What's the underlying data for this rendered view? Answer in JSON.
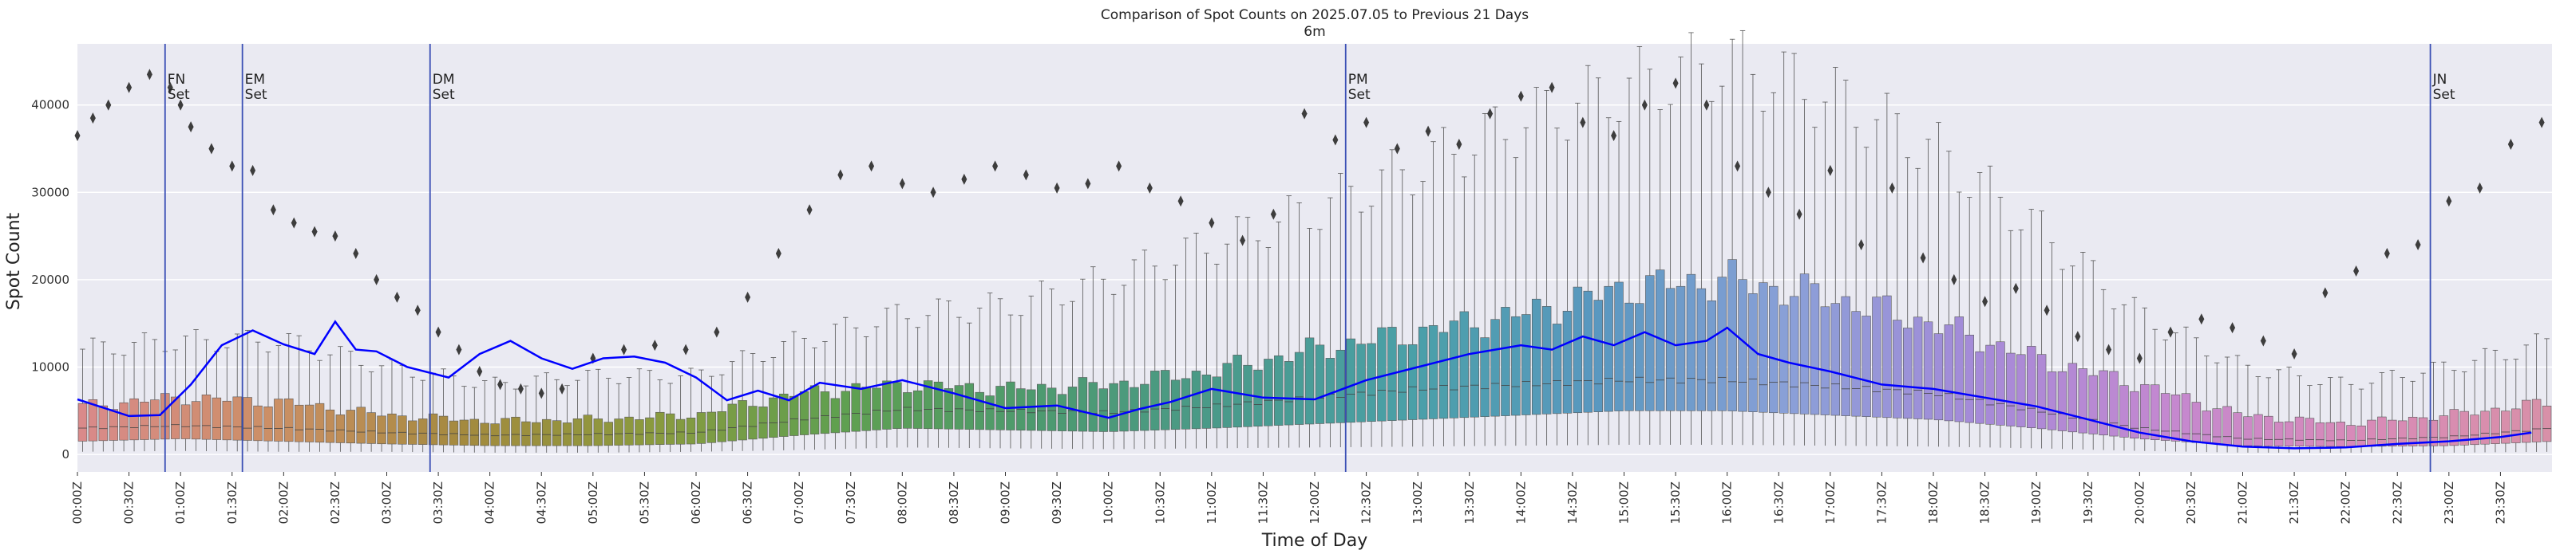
{
  "chart_data": {
    "type": "box",
    "title": "Comparison of Spot Counts on 2025.07.05 to Previous 21 Days",
    "subtitle": "6m",
    "xlabel": "Time of Day",
    "ylabel": "Spot Count",
    "ylim": [
      -2000,
      47000
    ],
    "yticks": [
      0,
      10000,
      20000,
      30000,
      40000
    ],
    "bin_minutes": 6,
    "xtick_labels": [
      "00:00Z",
      "00:30Z",
      "01:00Z",
      "01:30Z",
      "02:00Z",
      "02:30Z",
      "03:00Z",
      "03:30Z",
      "04:00Z",
      "04:30Z",
      "05:00Z",
      "05:30Z",
      "06:00Z",
      "06:30Z",
      "07:00Z",
      "07:30Z",
      "08:00Z",
      "08:30Z",
      "09:00Z",
      "09:30Z",
      "10:00Z",
      "10:30Z",
      "11:00Z",
      "11:30Z",
      "12:00Z",
      "12:30Z",
      "13:00Z",
      "13:30Z",
      "14:00Z",
      "14:30Z",
      "15:00Z",
      "15:30Z",
      "16:00Z",
      "16:30Z",
      "17:00Z",
      "17:30Z",
      "18:00Z",
      "18:30Z",
      "19:00Z",
      "19:30Z",
      "20:00Z",
      "20:30Z",
      "21:00Z",
      "21:30Z",
      "22:00Z",
      "22:30Z",
      "23:00Z",
      "23:30Z"
    ],
    "box_profile": {
      "hours": [
        0,
        1,
        2,
        3,
        4,
        5,
        6,
        7,
        8,
        9,
        10,
        11,
        12,
        13,
        14,
        15,
        16,
        17,
        18,
        19,
        20,
        21,
        22,
        23,
        24
      ],
      "q1": [
        1500,
        1800,
        1500,
        1200,
        1000,
        1000,
        1200,
        2200,
        3000,
        2800,
        2600,
        3000,
        3500,
        4000,
        4500,
        5000,
        5000,
        4500,
        4000,
        3000,
        1800,
        1000,
        900,
        1000,
        1500
      ],
      "median": [
        3000,
        3300,
        3000,
        2500,
        2200,
        2300,
        2500,
        4000,
        5200,
        5000,
        4800,
        5500,
        6500,
        7500,
        8000,
        8500,
        8500,
        7800,
        7000,
        5000,
        3000,
        1800,
        1600,
        2000,
        3000
      ],
      "q3": [
        5500,
        6500,
        6000,
        4500,
        3800,
        4000,
        4500,
        7000,
        8000,
        7500,
        8000,
        9500,
        12000,
        14000,
        16000,
        19000,
        20000,
        18000,
        15000,
        11000,
        8000,
        4500,
        3500,
        4500,
        6000
      ],
      "whisker_high": [
        12000,
        13000,
        13000,
        10000,
        8000,
        9000,
        9000,
        13000,
        16000,
        17000,
        20000,
        24000,
        28000,
        33000,
        38000,
        42000,
        45000,
        41000,
        35000,
        26000,
        16000,
        10000,
        8000,
        10000,
        13000
      ],
      "whisker_low": [
        300,
        400,
        300,
        300,
        200,
        200,
        300,
        500,
        800,
        700,
        600,
        700,
        800,
        900,
        1000,
        1100,
        1100,
        1000,
        900,
        700,
        400,
        200,
        200,
        200,
        300
      ]
    },
    "series": [
      {
        "name": "2025.07.05",
        "hours": [
          0,
          0.5,
          0.8,
          1.1,
          1.4,
          1.7,
          2.0,
          2.3,
          2.5,
          2.7,
          2.9,
          3.2,
          3.6,
          3.9,
          4.2,
          4.5,
          4.8,
          5.1,
          5.4,
          5.7,
          6.0,
          6.3,
          6.6,
          6.9,
          7.2,
          7.6,
          8.0,
          8.5,
          9.0,
          9.5,
          10.0,
          10.3,
          10.6,
          11.0,
          11.5,
          12.0,
          12.5,
          13.0,
          13.5,
          14.0,
          14.3,
          14.6,
          14.9,
          15.2,
          15.5,
          15.8,
          16.0,
          16.3,
          16.6,
          17.0,
          17.5,
          18.0,
          18.5,
          19.0,
          19.5,
          20.0,
          20.5,
          21.0,
          21.5,
          22.0,
          22.5,
          23.0,
          23.5,
          23.8
        ],
        "values": [
          6300,
          4400,
          4500,
          8000,
          12500,
          14200,
          12600,
          11500,
          15200,
          12000,
          11800,
          10000,
          8800,
          11500,
          13000,
          11000,
          9800,
          11000,
          11200,
          10500,
          8800,
          6200,
          7300,
          6200,
          8200,
          7500,
          8500,
          7000,
          5300,
          5600,
          4200,
          5200,
          6000,
          7500,
          6500,
          6300,
          8500,
          10000,
          11500,
          12500,
          12000,
          13500,
          12500,
          14000,
          12500,
          13000,
          14500,
          11500,
          10500,
          9500,
          8000,
          7500,
          6500,
          5500,
          4000,
          2500,
          1500,
          900,
          700,
          800,
          1200,
          1500,
          2000,
          2500
        ]
      }
    ],
    "outliers": {
      "hours": [
        0,
        0.15,
        0.3,
        0.5,
        0.7,
        0.9,
        1.0,
        1.1,
        1.3,
        1.5,
        1.7,
        1.9,
        2.1,
        2.3,
        2.5,
        2.7,
        2.9,
        3.1,
        3.3,
        3.5,
        3.7,
        3.9,
        4.1,
        4.3,
        4.5,
        4.7,
        5.0,
        5.3,
        5.6,
        5.9,
        6.2,
        6.5,
        6.8,
        7.1,
        7.4,
        7.7,
        8.0,
        8.3,
        8.6,
        8.9,
        9.2,
        9.5,
        9.8,
        10.1,
        10.4,
        10.7,
        11.0,
        11.3,
        11.6,
        11.9,
        12.2,
        12.5,
        12.8,
        13.1,
        13.4,
        13.7,
        14.0,
        14.3,
        14.6,
        14.9,
        15.2,
        15.5,
        15.8,
        16.1,
        16.4,
        16.7,
        17.0,
        17.3,
        17.6,
        17.9,
        18.2,
        18.5,
        18.8,
        19.1,
        19.4,
        19.7,
        20.0,
        20.3,
        20.6,
        20.9,
        21.2,
        21.5,
        21.8,
        22.1,
        22.4,
        22.7,
        23.0,
        23.3,
        23.6,
        23.9
      ],
      "values": [
        36500,
        38500,
        40000,
        42000,
        43500,
        42000,
        40000,
        37500,
        35000,
        33000,
        32500,
        28000,
        26500,
        25500,
        25000,
        23000,
        20000,
        18000,
        16500,
        14000,
        12000,
        9500,
        8000,
        7500,
        7000,
        7500,
        11000,
        12000,
        12500,
        12000,
        14000,
        18000,
        23000,
        28000,
        32000,
        33000,
        31000,
        30000,
        31500,
        33000,
        32000,
        30500,
        31000,
        33000,
        30500,
        29000,
        26500,
        24500,
        27500,
        39000,
        36000,
        38000,
        35000,
        37000,
        35500,
        39000,
        41000,
        42000,
        38000,
        36500,
        40000,
        42500,
        40000,
        33000,
        30000,
        27500,
        32500,
        24000,
        30500,
        22500,
        20000,
        17500,
        19000,
        16500,
        13500,
        12000,
        11000,
        14000,
        15500,
        14500,
        13000,
        11500,
        18500,
        21000,
        23000,
        24000,
        29000,
        30500,
        35500,
        38000
      ]
    },
    "annotations": [
      {
        "hour": 0.85,
        "label_line1": "FN",
        "label_line2": "Set"
      },
      {
        "hour": 1.6,
        "label_line1": "EM",
        "label_line2": "Set"
      },
      {
        "hour": 3.42,
        "label_line1": "DM",
        "label_line2": "Set"
      },
      {
        "hour": 12.3,
        "label_line1": "PM",
        "label_line2": "Set"
      },
      {
        "hour": 22.82,
        "label_line1": "JN",
        "label_line2": "Set"
      }
    ],
    "colors": {
      "background": "#eaeaf2",
      "grid": "#ffffff",
      "series": "#0000ff",
      "annotation_line": "#3a4fb5",
      "outlier": "#3d3d3d",
      "box_palette": [
        "#d98a8a",
        "#cc8f65",
        "#a48a3e",
        "#8a9a3e",
        "#5fa050",
        "#4d9a6e",
        "#4a9a8a",
        "#4aa0a8",
        "#5a98c0",
        "#8aa0d8",
        "#a58ad8",
        "#c488d0",
        "#d88ab8",
        "#d890a8"
      ]
    }
  }
}
